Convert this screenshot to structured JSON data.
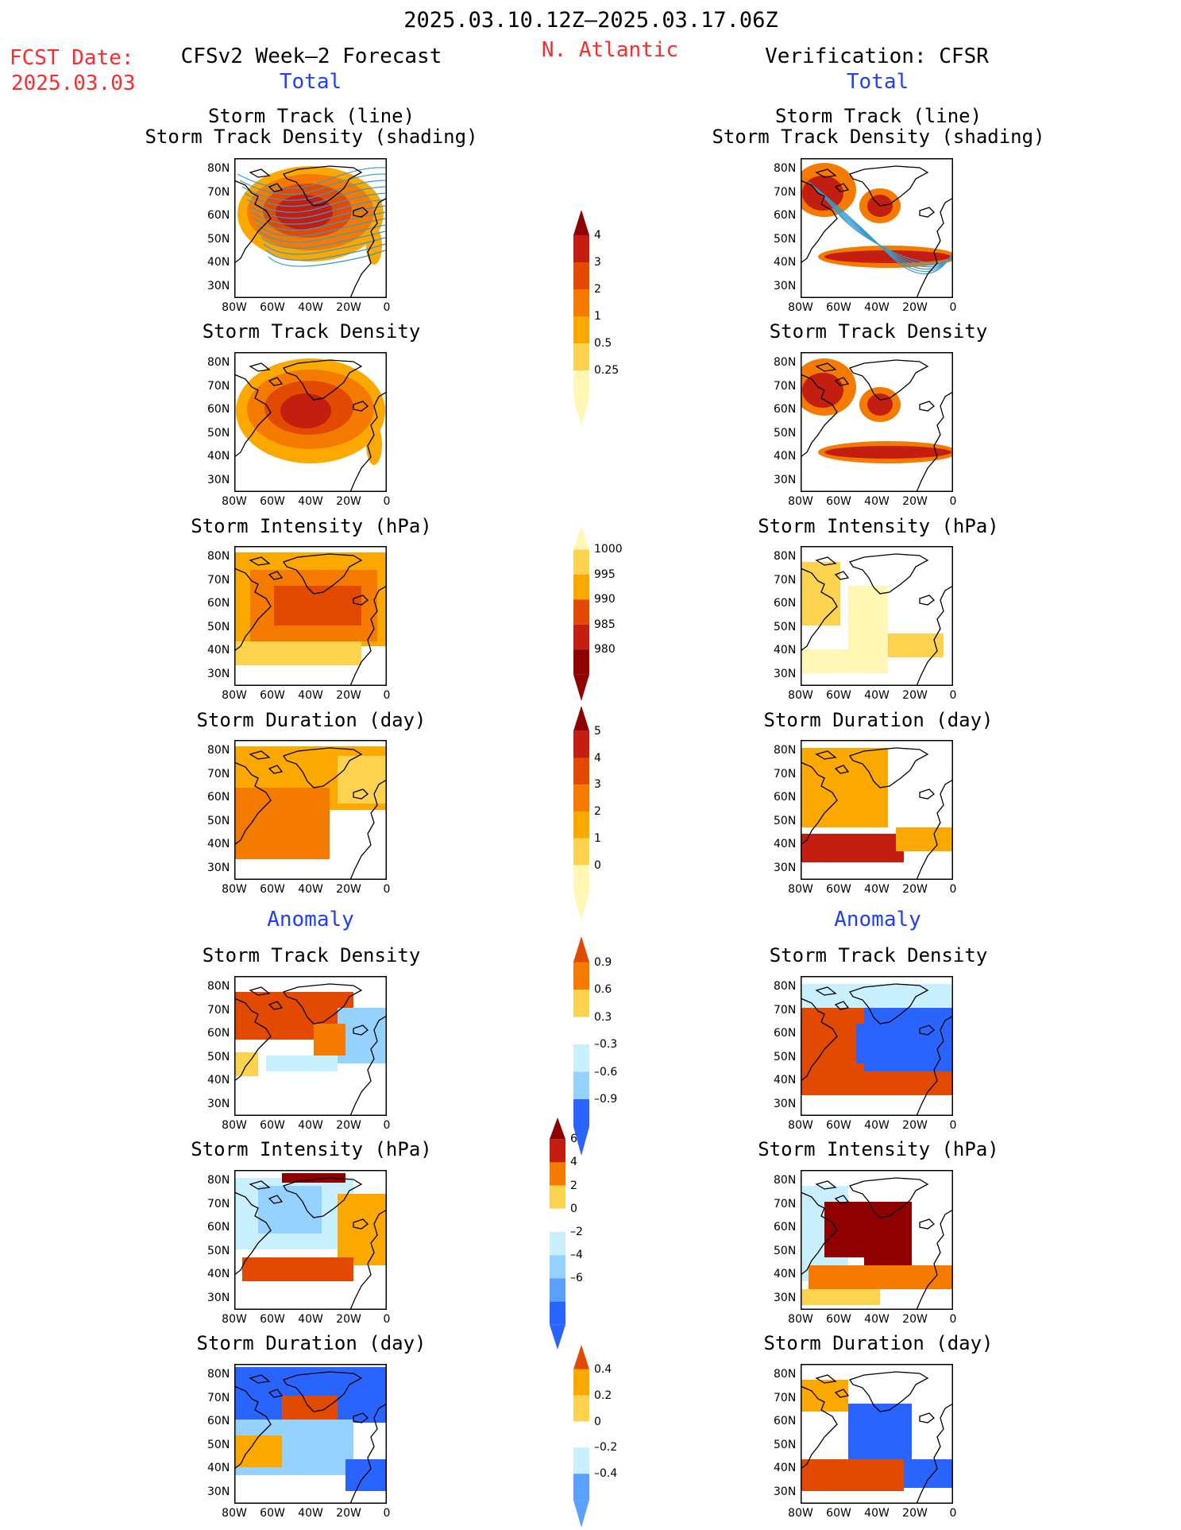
{
  "header": {
    "date_range": "2025.03.10.12Z–2025.03.17.06Z",
    "fcst_label": "FCST Date:",
    "fcst_date": "2025.03.03",
    "model_title": "CFSv2 Week–2 Forecast",
    "region": "N. Atlantic",
    "verif_title": "Verification: CFSR"
  },
  "sections": {
    "total": "Total",
    "anomaly": "Anomaly"
  },
  "panel_titles": {
    "track_line": "Storm Track (line)",
    "track_density_shading": "Storm Track Density (shading)",
    "track_density": "Storm Track Density",
    "intensity": "Storm Intensity (hPa)",
    "duration": "Storm Duration (day)"
  },
  "axes": {
    "lat_labels": [
      "80N",
      "70N",
      "60N",
      "50N",
      "40N",
      "30N"
    ],
    "lon_labels": [
      "80W",
      "60W",
      "40W",
      "20W",
      "0"
    ]
  },
  "colorbars": {
    "density": [
      "4",
      "3",
      "2",
      "1",
      "0.5",
      "0.25"
    ],
    "intensity": [
      "1000",
      "995",
      "990",
      "985",
      "980"
    ],
    "duration": [
      "5",
      "4",
      "3",
      "2",
      "1",
      "0"
    ],
    "density_anom": [
      "0.9",
      "0.6",
      "0.3",
      "–0.3",
      "–0.6",
      "–0.9"
    ],
    "intensity_anom": [
      "6",
      "4",
      "2",
      "0",
      "–2",
      "–4",
      "–6"
    ],
    "duration_anom": [
      "0.4",
      "0.2",
      "0",
      "–0.2",
      "–0.4"
    ]
  },
  "colors": {
    "warm": [
      "#fff7b3",
      "#fcd34f",
      "#fba800",
      "#f47a00",
      "#e14a00",
      "#c41e10",
      "#8f0000"
    ],
    "cool": [
      "#c8f0ff",
      "#96d2ff",
      "#5aa0ff",
      "#2a64ff",
      "#1f49c8"
    ],
    "track_line": "#3a9ad0",
    "title_red": "#ff2a2a",
    "title_blue": "#1f3fff"
  }
}
